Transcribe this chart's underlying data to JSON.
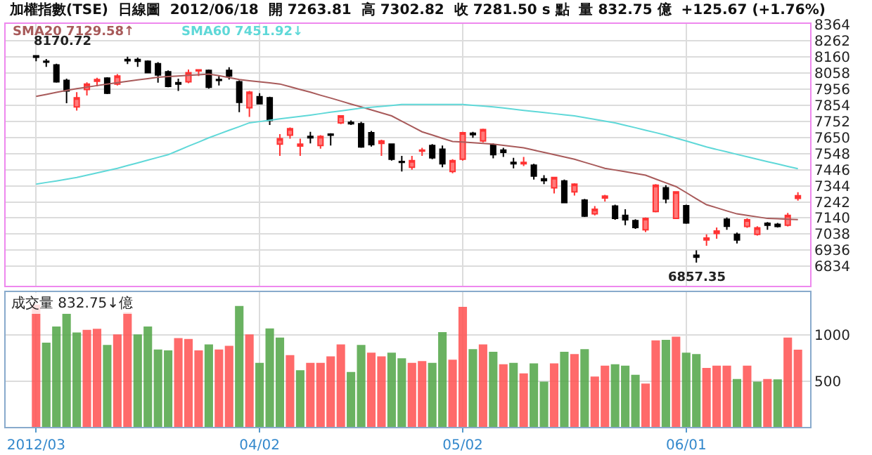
{
  "chart_data": [
    {
      "type": "candlestick",
      "title": "加權指數(TSE)  日線圖  2012/06/18  開 7263.81  高 7302.82  收 7281.50 s 點  量 832.75 億  +125.67 (+1.76%)",
      "categories": [
        null,
        null,
        null,
        null,
        null,
        null,
        null,
        null,
        null,
        null,
        null,
        null,
        null,
        null,
        null,
        null,
        null,
        null,
        null,
        null,
        null,
        null,
        null,
        null,
        null,
        null,
        null,
        null,
        null,
        null,
        null,
        null,
        null,
        null,
        null,
        null,
        null,
        null,
        null,
        null,
        null,
        null,
        null,
        null,
        null,
        null,
        null,
        null,
        null,
        null,
        null,
        null,
        null,
        null,
        null,
        null,
        null,
        null,
        null,
        null,
        null,
        null,
        null,
        null,
        null,
        null,
        null,
        null,
        null,
        null,
        null,
        null,
        null,
        null,
        null,
        null
      ],
      "ohlc": [
        [
          8167,
          8170.72,
          8133,
          8159
        ],
        [
          8133,
          8147,
          8098,
          8127
        ],
        [
          8110,
          8118,
          7997,
          8003
        ],
        [
          8012,
          8023,
          7867,
          7945
        ],
        [
          7844,
          7937,
          7821,
          7902
        ],
        [
          7954,
          8000,
          7916,
          7989
        ],
        [
          8006,
          8029,
          7974,
          8017
        ],
        [
          8026,
          8032,
          7925,
          7931
        ],
        [
          7989,
          8052,
          7980,
          8040
        ],
        [
          8144,
          8162,
          8115,
          8136
        ],
        [
          8144,
          8156,
          8098,
          8133
        ],
        [
          8133,
          8139,
          8058,
          8061
        ],
        [
          8118,
          8127,
          7997,
          8046
        ],
        [
          8066,
          8075,
          7968,
          7974
        ],
        [
          7997,
          8023,
          7945,
          7989
        ],
        [
          8003,
          8081,
          7994,
          8061
        ],
        [
          8072,
          8081,
          8040,
          8078
        ],
        [
          8075,
          8081,
          7960,
          7968
        ],
        [
          8017,
          8040,
          7980,
          8012
        ],
        [
          8075,
          8095,
          8017,
          8040
        ],
        [
          8003,
          8012,
          7810,
          7873
        ],
        [
          7838,
          7945,
          7781,
          7937
        ],
        [
          7908,
          7931,
          7859,
          7864
        ],
        [
          7902,
          7908,
          7729,
          7758
        ],
        [
          7608,
          7671,
          7533,
          7642
        ],
        [
          7665,
          7714,
          7642,
          7706
        ],
        [
          7596,
          7642,
          7533,
          7608
        ],
        [
          7657,
          7686,
          7613,
          7648
        ],
        [
          7599,
          7665,
          7579,
          7657
        ],
        [
          7671,
          7677,
          7599,
          7665
        ],
        [
          7743,
          7792,
          7735,
          7787
        ],
        [
          7746,
          7758,
          7729,
          7737
        ],
        [
          7737,
          7749,
          7585,
          7590
        ],
        [
          7680,
          7691,
          7593,
          7605
        ],
        [
          7613,
          7636,
          7533,
          7628
        ],
        [
          7608,
          7613,
          7504,
          7512
        ],
        [
          7498,
          7533,
          7435,
          7492
        ],
        [
          7461,
          7533,
          7446,
          7504
        ],
        [
          7564,
          7585,
          7533,
          7570
        ],
        [
          7599,
          7608,
          7512,
          7521
        ],
        [
          7576,
          7599,
          7461,
          7484
        ],
        [
          7435,
          7512,
          7423,
          7504
        ],
        [
          7512,
          7686,
          7504,
          7680
        ],
        [
          7677,
          7686,
          7648,
          7668
        ],
        [
          7628,
          7706,
          7619,
          7700
        ],
        [
          7605,
          7613,
          7518,
          7541
        ],
        [
          7570,
          7585,
          7527,
          7556
        ],
        [
          7492,
          7521,
          7455,
          7484
        ],
        [
          7484,
          7527,
          7469,
          7492
        ],
        [
          7475,
          7484,
          7383,
          7406
        ],
        [
          7388,
          7411,
          7354,
          7377
        ],
        [
          7331,
          7397,
          7296,
          7397
        ],
        [
          7374,
          7383,
          7238,
          7238
        ],
        [
          7305,
          7360,
          7282,
          7354
        ],
        [
          7253,
          7261,
          7146,
          7152
        ],
        [
          7166,
          7215,
          7157,
          7195
        ],
        [
          7267,
          7287,
          7244,
          7279
        ],
        [
          7215,
          7224,
          7129,
          7137
        ],
        [
          7157,
          7195,
          7094,
          7129
        ],
        [
          7123,
          7132,
          7071,
          7080
        ],
        [
          7065,
          7143,
          7051,
          7137
        ],
        [
          7181,
          7354,
          7175,
          7348
        ],
        [
          7331,
          7348,
          7233,
          7261
        ],
        [
          7137,
          7310,
          7137,
          7305
        ],
        [
          7218,
          7224,
          7103,
          7109
        ],
        [
          6904,
          6935,
          6857.35,
          6892
        ],
        [
          7001,
          7036,
          6964,
          7013
        ],
        [
          7042,
          7080,
          7008,
          7057
        ],
        [
          7132,
          7143,
          7065,
          7088
        ],
        [
          7036,
          7048,
          6979,
          7001
        ],
        [
          7086,
          7137,
          7077,
          7129
        ],
        [
          7036,
          7088,
          7028,
          7077
        ],
        [
          7106,
          7114,
          7065,
          7094
        ],
        [
          7100,
          7109,
          7080,
          7086
        ],
        [
          7094,
          7172,
          7086,
          7156
        ],
        [
          7263.81,
          7302.82,
          7250,
          7281.5
        ]
      ],
      "series": [
        {
          "name": "SMA20 7129.58↑",
          "type": "line",
          "color": "#a85a5a",
          "values": [
            7911,
            7923,
            7936,
            7948,
            7960,
            7969,
            7979,
            7988,
            7997,
            8006,
            8015,
            8023,
            8032,
            8036,
            8040,
            8044,
            8048,
            8052,
            8042,
            8030,
            8017,
            8010,
            8003,
            7996,
            7989,
            7972,
            7954,
            7937,
            7918,
            7900,
            7881,
            7862,
            7844,
            7825,
            7806,
            7787,
            7753,
            7720,
            7686,
            7666,
            7645,
            7625,
            7621,
            7617,
            7612,
            7608,
            7600,
            7593,
            7585,
            7570,
            7556,
            7541,
            7527,
            7512,
            7493,
            7474,
            7455,
            7444,
            7433,
            7422,
            7411,
            7387,
            7363,
            7339,
            7301,
            7262,
            7224,
            7205,
            7185,
            7166,
            7156,
            7147,
            7137,
            7135,
            7132,
            7129.58
          ]
        },
        {
          "name": "SMA60 7451.92↓",
          "type": "line",
          "color": "#5fd8d8",
          "values": [
            7354,
            7365,
            7375,
            7386,
            7397,
            7411,
            7426,
            7440,
            7455,
            7472,
            7489,
            7507,
            7524,
            7541,
            7568,
            7595,
            7621,
            7648,
            7672,
            7696,
            7719,
            7743,
            7751,
            7759,
            7768,
            7776,
            7784,
            7792,
            7801,
            7810,
            7818,
            7827,
            7836,
            7842,
            7847,
            7853,
            7859,
            7859,
            7859,
            7859,
            7859,
            7859,
            7859,
            7854,
            7849,
            7844,
            7837,
            7829,
            7822,
            7815,
            7808,
            7801,
            7794,
            7787,
            7776,
            7765,
            7754,
            7743,
            7727,
            7712,
            7696,
            7681,
            7665,
            7646,
            7628,
            7609,
            7590,
            7574,
            7559,
            7543,
            7528,
            7512,
            7497,
            7482,
            7467,
            7451.92
          ]
        }
      ],
      "ylim": [
        6710,
        8370
      ],
      "yticks": [
        8364,
        8262,
        8160,
        8058,
        7956,
        7854,
        7752,
        7650,
        7548,
        7446,
        7344,
        7242,
        7140,
        7038,
        6936,
        6834
      ],
      "grid": true,
      "tick_labels": "y",
      "annotations": [
        "8170.72",
        "6857.35"
      ]
    },
    {
      "type": "bar",
      "title": "成交量 832.75↓億",
      "categories": [
        "2012/03",
        null,
        null,
        null,
        null,
        null,
        null,
        null,
        null,
        null,
        null,
        null,
        null,
        null,
        null,
        null,
        null,
        null,
        null,
        null,
        null,
        null,
        "04/02",
        null,
        null,
        null,
        null,
        null,
        null,
        null,
        null,
        null,
        null,
        null,
        null,
        null,
        null,
        null,
        null,
        null,
        null,
        null,
        "05/02",
        null,
        null,
        null,
        null,
        null,
        null,
        null,
        null,
        null,
        null,
        null,
        null,
        null,
        null,
        null,
        null,
        null,
        null,
        null,
        null,
        null,
        "06/01",
        null,
        null,
        null,
        null,
        null,
        null,
        null,
        null,
        null,
        null,
        null
      ],
      "values": [
        1325,
        910,
        1085,
        1225,
        1020,
        1050,
        1060,
        885,
        1000,
        1240,
        1000,
        1085,
        835,
        825,
        960,
        950,
        825,
        890,
        835,
        875,
        1310,
        1000,
        690,
        1065,
        965,
        775,
        610,
        690,
        690,
        760,
        890,
        590,
        885,
        800,
        760,
        800,
        740,
        690,
        710,
        690,
        1025,
        725,
        1300,
        840,
        890,
        810,
        675,
        690,
        575,
        685,
        485,
        685,
        810,
        785,
        840,
        540,
        660,
        675,
        660,
        560,
        465,
        935,
        940,
        975,
        800,
        785,
        635,
        660,
        660,
        515,
        660,
        485,
        515,
        510,
        965,
        832.75
      ],
      "colors": [
        "#ff5a5a",
        "#5aaa50",
        "#5aaa50",
        "#5aaa50",
        "#5aaa50",
        "#ff5a5a",
        "#ff5a5a",
        "#5aaa50",
        "#ff5a5a",
        "#ff5a5a",
        "#5aaa50",
        "#5aaa50",
        "#5aaa50",
        "#5aaa50",
        "#ff5a5a",
        "#ff5a5a",
        "#ff5a5a",
        "#5aaa50",
        "#ff5a5a",
        "#ff5a5a",
        "#5aaa50",
        "#ff5a5a",
        "#5aaa50",
        "#5aaa50",
        "#5aaa50",
        "#ff5a5a",
        "#5aaa50",
        "#ff5a5a",
        "#ff5a5a",
        "#ff5a5a",
        "#ff5a5a",
        "#5aaa50",
        "#5aaa50",
        "#ff5a5a",
        "#ff5a5a",
        "#5aaa50",
        "#5aaa50",
        "#ff5a5a",
        "#ff5a5a",
        "#5aaa50",
        "#5aaa50",
        "#ff5a5a",
        "#ff5a5a",
        "#5aaa50",
        "#ff5a5a",
        "#5aaa50",
        "#ff5a5a",
        "#5aaa50",
        "#ff5a5a",
        "#5aaa50",
        "#5aaa50",
        "#ff5a5a",
        "#5aaa50",
        "#ff5a5a",
        "#5aaa50",
        "#ff5a5a",
        "#ff5a5a",
        "#5aaa50",
        "#5aaa50",
        "#5aaa50",
        "#ff5a5a",
        "#ff5a5a",
        "#5aaa50",
        "#ff5a5a",
        "#5aaa50",
        "#5aaa50",
        "#ff5a5a",
        "#ff5a5a",
        "#ff5a5a",
        "#5aaa50",
        "#ff5a5a",
        "#5aaa50",
        "#ff5a5a",
        "#5aaa50",
        "#ff5a5a",
        "#ff5a5a"
      ],
      "ylim": [
        0,
        1470
      ],
      "yticks": [
        500,
        1000
      ],
      "grid": true
    }
  ]
}
